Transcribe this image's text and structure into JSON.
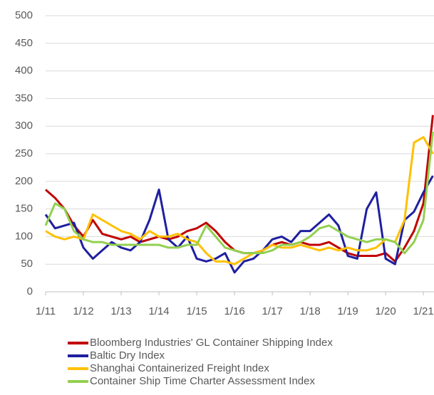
{
  "chart_data": {
    "type": "line",
    "x": [
      2011,
      2011.25,
      2011.5,
      2011.75,
      2012,
      2012.25,
      2012.5,
      2012.75,
      2013,
      2013.25,
      2013.5,
      2013.75,
      2014,
      2014.25,
      2014.5,
      2014.75,
      2015,
      2015.25,
      2015.5,
      2015.75,
      2016,
      2016.25,
      2016.5,
      2016.75,
      2017,
      2017.25,
      2017.5,
      2017.75,
      2018,
      2018.25,
      2018.5,
      2018.75,
      2019,
      2019.25,
      2019.5,
      2019.75,
      2020,
      2020.25,
      2020.5,
      2020.75,
      2021,
      2021.25
    ],
    "series": [
      {
        "name": "Bloomberg Industries' GL Container Shipping Index",
        "color": "#c00000",
        "values": [
          185,
          170,
          150,
          120,
          100,
          130,
          105,
          100,
          95,
          100,
          90,
          95,
          100,
          95,
          100,
          110,
          115,
          125,
          110,
          90,
          75,
          70,
          70,
          75,
          85,
          90,
          85,
          90,
          85,
          85,
          90,
          80,
          70,
          65,
          65,
          65,
          70,
          55,
          80,
          110,
          160,
          320
        ]
      },
      {
        "name": "Baltic Dry Index",
        "color": "#1f1fa0",
        "values": [
          140,
          115,
          120,
          125,
          80,
          60,
          75,
          90,
          80,
          75,
          90,
          130,
          185,
          95,
          80,
          100,
          60,
          55,
          60,
          70,
          35,
          55,
          60,
          75,
          95,
          100,
          90,
          110,
          110,
          125,
          140,
          120,
          65,
          60,
          150,
          180,
          60,
          50,
          130,
          145,
          180,
          210
        ]
      },
      {
        "name": "Shanghai Containerized Freight Index",
        "color": "#ffc000",
        "values": [
          110,
          100,
          95,
          100,
          95,
          140,
          130,
          120,
          110,
          105,
          95,
          110,
          100,
          100,
          105,
          95,
          90,
          70,
          55,
          55,
          50,
          60,
          70,
          75,
          85,
          80,
          80,
          85,
          80,
          75,
          80,
          75,
          80,
          75,
          75,
          80,
          95,
          90,
          130,
          270,
          280,
          250
        ]
      },
      {
        "name": "Container Ship Time Charter Assessment Index",
        "color": "#92d050",
        "values": [
          120,
          160,
          150,
          110,
          95,
          90,
          90,
          85,
          85,
          85,
          85,
          85,
          85,
          80,
          80,
          85,
          85,
          120,
          100,
          80,
          75,
          70,
          70,
          70,
          75,
          85,
          85,
          90,
          100,
          115,
          120,
          110,
          100,
          95,
          90,
          95,
          95,
          90,
          70,
          90,
          130,
          290
        ]
      }
    ],
    "xlim": [
      2011,
      2021.28
    ],
    "xticks": [
      {
        "value": 2011,
        "label": "1/11"
      },
      {
        "value": 2012,
        "label": "1/12"
      },
      {
        "value": 2013,
        "label": "1/13"
      },
      {
        "value": 2014,
        "label": "1/14"
      },
      {
        "value": 2015,
        "label": "1/15"
      },
      {
        "value": 2016,
        "label": "1/16"
      },
      {
        "value": 2017,
        "label": "1/17"
      },
      {
        "value": 2018,
        "label": "1/18"
      },
      {
        "value": 2019,
        "label": "1/19"
      },
      {
        "value": 2020,
        "label": "1/20"
      },
      {
        "value": 2021,
        "label": "1/21"
      }
    ],
    "ylim": [
      0,
      500
    ],
    "yticks": [
      0,
      50,
      100,
      150,
      200,
      250,
      300,
      350,
      400,
      450,
      500
    ],
    "grid": true
  }
}
